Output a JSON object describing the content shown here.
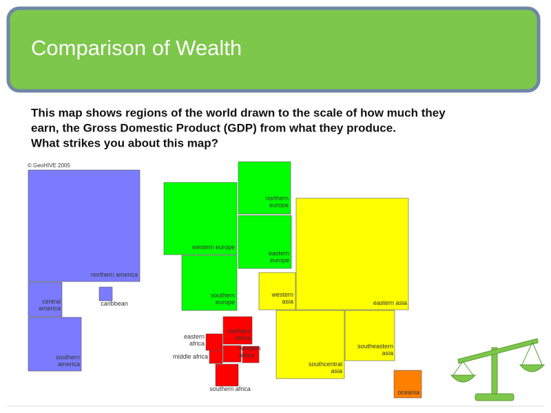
{
  "header": {
    "title": "Comparison of Wealth"
  },
  "body": [
    "This map shows regions of the world drawn to the scale of how much they",
    "earn, the Gross Domestic Product (GDP) from what they produce.",
    "What strikes you about this map?"
  ],
  "map": {
    "credit": "© GeoHIVE 2005",
    "regions": [
      {
        "lines": [
          "northern america"
        ]
      },
      {
        "lines": [
          "central",
          "america"
        ]
      },
      {
        "lines": [
          "caribbean"
        ]
      },
      {
        "lines": [
          "southern",
          "america"
        ]
      },
      {
        "lines": [
          "western europe"
        ]
      },
      {
        "lines": [
          "northern",
          "europe"
        ]
      },
      {
        "lines": [
          "eastern",
          "europe"
        ]
      },
      {
        "lines": [
          "southern",
          "europe"
        ]
      },
      {
        "lines": [
          "western",
          "asia"
        ]
      },
      {
        "lines": [
          "eastern asia"
        ]
      },
      {
        "lines": [
          "southcentral",
          "asia"
        ]
      },
      {
        "lines": [
          "southeastern",
          "asia"
        ]
      },
      {
        "lines": [
          "oceania"
        ]
      },
      {
        "lines": [
          "northern",
          "africa"
        ]
      },
      {
        "lines": [
          "eastern",
          "africa"
        ]
      },
      {
        "lines": [
          "middle africa"
        ]
      },
      {
        "lines": [
          "western",
          "africa"
        ]
      },
      {
        "lines": [
          "southern africa"
        ]
      }
    ]
  }
}
